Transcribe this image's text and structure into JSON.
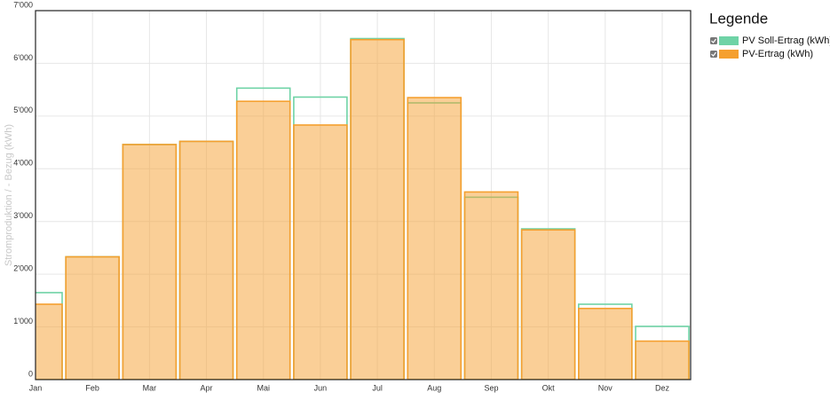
{
  "chart_data": {
    "type": "bar",
    "y_label": "Stromproduktion / - Bezug (kWh)",
    "legend_title": "Legende",
    "categories": [
      "Jan",
      "Feb",
      "Mar",
      "Apr",
      "Mai",
      "Jun",
      "Jul",
      "Aug",
      "Sep",
      "Okt",
      "Nov",
      "Dez"
    ],
    "series": [
      {
        "name": "PV Soll-Ertrag (kWh)",
        "color": "#6fd3a6",
        "values": [
          1650,
          2330,
          4460,
          4520,
          5530,
          5360,
          6470,
          5250,
          3460,
          2860,
          1430,
          1010
        ]
      },
      {
        "name": "PV-Ertrag (kWh)",
        "color": "#f5a030",
        "values": [
          1430,
          2330,
          4460,
          4520,
          5280,
          4830,
          6450,
          5350,
          3560,
          2840,
          1350,
          730
        ]
      }
    ],
    "ylim": [
      0,
      7000
    ],
    "yticks": [
      0,
      {
        "value": 1000,
        "label": "1'000"
      },
      {
        "value": 2000,
        "label": "2'000"
      },
      {
        "value": 3000,
        "label": "3'000"
      },
      {
        "value": 4000,
        "label": "4'000"
      },
      {
        "value": 5000,
        "label": "5'000"
      },
      {
        "value": 6000,
        "label": "6'000"
      },
      {
        "value": 7000,
        "label": "7'000"
      }
    ],
    "grid": true
  }
}
